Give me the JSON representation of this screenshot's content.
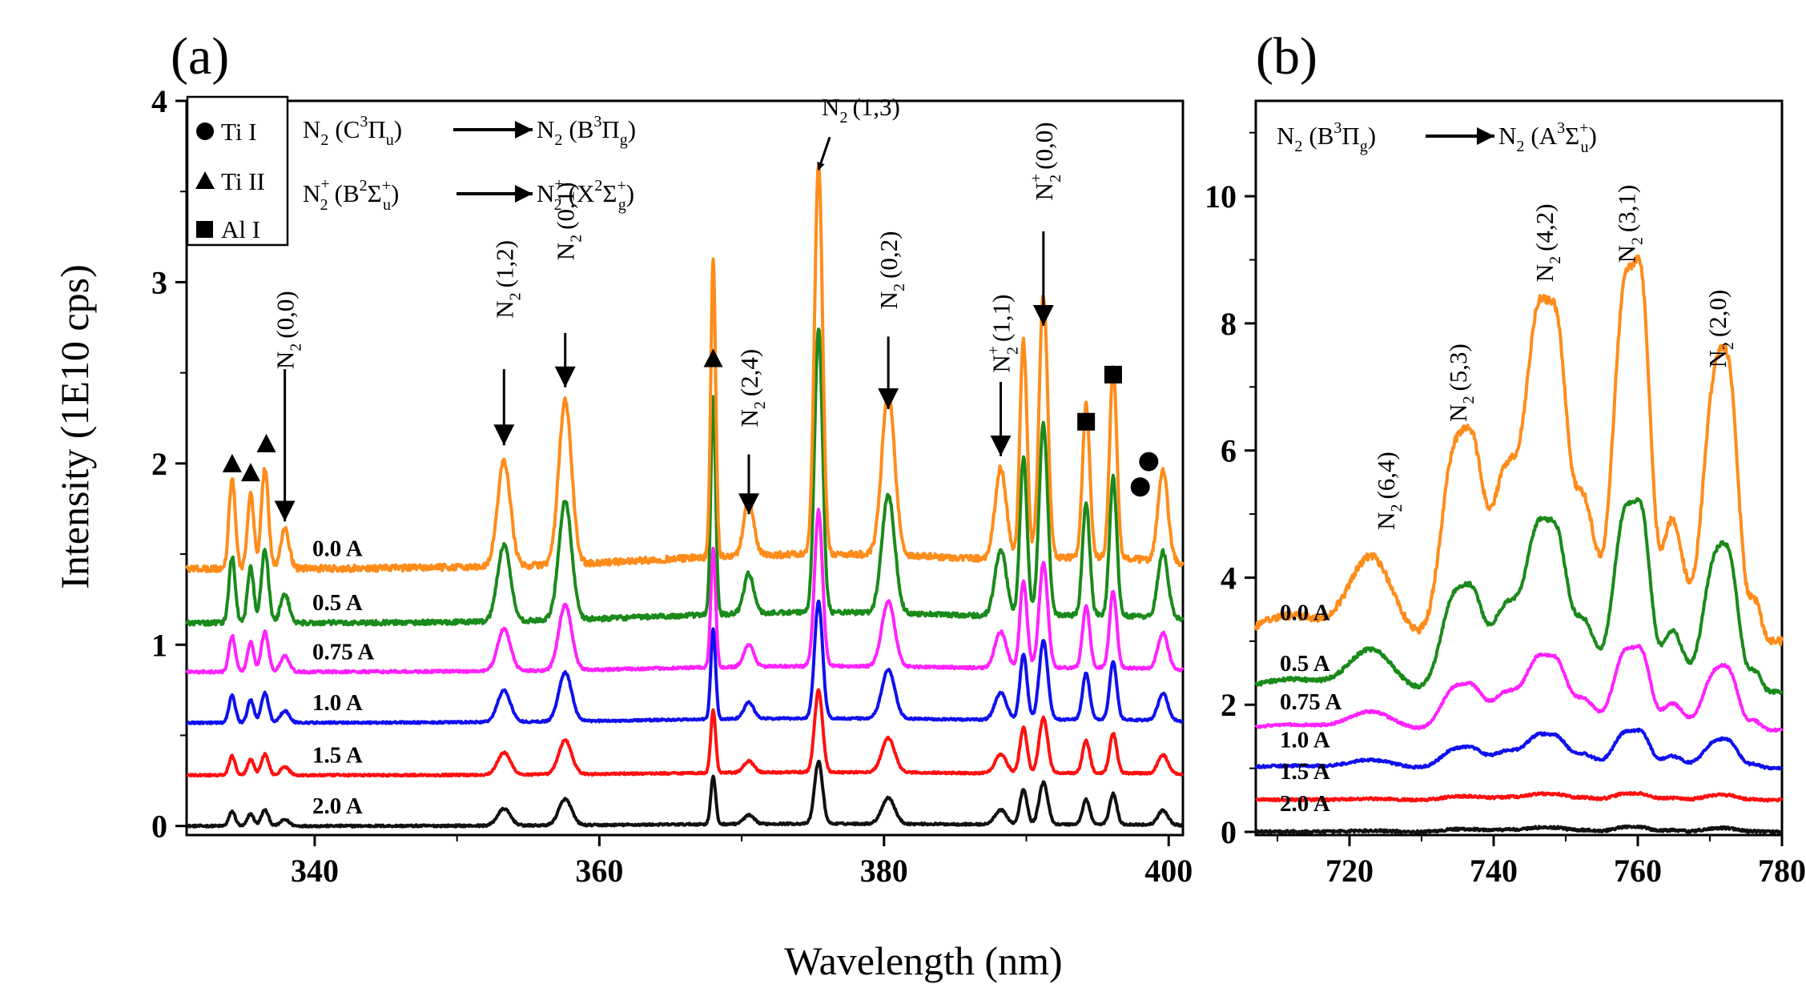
{
  "figure": {
    "panel_a_tag": "(a)",
    "panel_b_tag": "(b)",
    "ylabel": "Intensity (1E10 cps)",
    "xlabel": "Wavelength (nm)"
  },
  "legend": {
    "items": [
      {
        "marker": "circle",
        "label": "Ti I"
      },
      {
        "marker": "triangle",
        "label": "Ti II"
      },
      {
        "marker": "square",
        "label": "Al I"
      }
    ]
  },
  "transitions": {
    "a_line1": {
      "left": "N",
      "left_sub": "2",
      "left_state": "(C",
      "left_sup": "3",
      "left_term": "Π",
      "left_term_sub": "u",
      "left_close": ")",
      "right": "N",
      "right_sub": "2",
      "right_state": "(B",
      "right_sup": "3",
      "right_term": "Π",
      "right_term_sub": "g",
      "right_close": ")"
    },
    "a_line2": {
      "left": "N",
      "left_sup0": "+",
      "left_sub": "2",
      "left_state": "(B",
      "left_sup": "2",
      "left_term": "Σ",
      "left_term_sup": "+",
      "left_term_sub": "u",
      "left_close": ")",
      "right": "N",
      "right_sup0": "+",
      "right_sub": "2",
      "right_state": "(X",
      "right_sup": "2",
      "right_term": "Σ",
      "right_term_sup": "+",
      "right_term_sub": "g",
      "right_close": ")"
    },
    "b_line1": {
      "left": "N",
      "left_sub": "2",
      "left_state": "(B",
      "left_sup": "3",
      "left_term": "Π",
      "left_term_sub": "g",
      "left_close": ")",
      "right": "N",
      "right_sub": "2",
      "right_state": "(A",
      "right_sup": "3",
      "right_term": "Σ",
      "right_term_sup": "+",
      "right_term_sub": "u",
      "right_close": ")"
    }
  },
  "chart_data": [
    {
      "id": "a",
      "type": "line",
      "title": "(a)",
      "xlabel": "Wavelength (nm)",
      "ylabel": "Intensity (1E10 cps)",
      "xlim": [
        331,
        401
      ],
      "ylim": [
        -0.05,
        4
      ],
      "xticks": [
        340,
        360,
        380,
        400
      ],
      "yticks": [
        0,
        1,
        2,
        3,
        4
      ],
      "series": [
        {
          "name": "0.0 A",
          "color": "#ff8c1a",
          "baseline": 1.42,
          "scale": 1.0
        },
        {
          "name": "0.5 A",
          "color": "#1a8a1a",
          "baseline": 1.12,
          "scale": 0.73
        },
        {
          "name": "0.75 A",
          "color": "#ff22ff",
          "baseline": 0.85,
          "scale": 0.4
        },
        {
          "name": "1.0 A",
          "color": "#1010ee",
          "baseline": 0.57,
          "scale": 0.3
        },
        {
          "name": "1.5 A",
          "color": "#ff1010",
          "baseline": 0.28,
          "scale": 0.21
        },
        {
          "name": "2.0 A",
          "color": "#111111",
          "baseline": 0.0,
          "scale": 0.16
        }
      ],
      "peaks": [
        {
          "x": 334.2,
          "h": 0.5,
          "w": 0.22
        },
        {
          "x": 335.5,
          "h": 0.42,
          "w": 0.22
        },
        {
          "x": 336.5,
          "h": 0.55,
          "w": 0.25
        },
        {
          "x": 337.9,
          "h": 0.22,
          "w": 0.3
        },
        {
          "x": 353.3,
          "h": 0.58,
          "w": 0.45
        },
        {
          "x": 357.6,
          "h": 0.9,
          "w": 0.45
        },
        {
          "x": 368.0,
          "h": 1.65,
          "w": 0.17
        },
        {
          "x": 370.5,
          "h": 0.3,
          "w": 0.35
        },
        {
          "x": 375.4,
          "h": 2.15,
          "w": 0.28
        },
        {
          "x": 380.3,
          "h": 0.9,
          "w": 0.45
        },
        {
          "x": 388.2,
          "h": 0.5,
          "w": 0.4
        },
        {
          "x": 389.8,
          "h": 1.2,
          "w": 0.25
        },
        {
          "x": 391.2,
          "h": 1.45,
          "w": 0.3
        },
        {
          "x": 394.2,
          "h": 0.85,
          "w": 0.25
        },
        {
          "x": 396.1,
          "h": 1.05,
          "w": 0.25
        },
        {
          "x": 399.6,
          "h": 0.5,
          "w": 0.35
        }
      ],
      "annotations": [
        {
          "label": "N2(0,0)",
          "main": "N",
          "sub": "2",
          "rest": "(0,0)",
          "x": 337.9,
          "label_y": 2.52,
          "arrow_from": 2.52,
          "arrow_to": 1.68,
          "rotate": true
        },
        {
          "label": "N2(1,2)",
          "main": "N",
          "sub": "2",
          "rest": "(1,2)",
          "x": 353.3,
          "label_y": 2.8,
          "arrow_from": 2.52,
          "arrow_to": 2.1,
          "rotate": true
        },
        {
          "label": "N2(0,1)",
          "main": "N",
          "sub": "2",
          "rest": "(0,1)",
          "x": 357.6,
          "label_y": 3.12,
          "arrow_from": 2.72,
          "arrow_to": 2.42,
          "rotate": true
        },
        {
          "label": "N2(2,4)",
          "main": "N",
          "sub": "2",
          "rest": "(2,4)",
          "x": 370.5,
          "label_y": 2.2,
          "arrow_from": 2.05,
          "arrow_to": 1.72,
          "rotate": true
        },
        {
          "label": "N2(1,3)",
          "main": "N",
          "sub": "2",
          "rest": "(1,3)",
          "x": 375.4,
          "label_y": 3.92,
          "arrow_from": 3.8,
          "arrow_to": 3.62,
          "rotate": false
        },
        {
          "label": "N2(0,2)",
          "main": "N",
          "sub": "2",
          "rest": "(0,2)",
          "x": 380.3,
          "label_y": 2.85,
          "arrow_from": 2.7,
          "arrow_to": 2.3,
          "rotate": true
        },
        {
          "label": "N2+(1,1)",
          "main": "N",
          "sub": "2",
          "sup": "+",
          "rest": "(1,1)",
          "x": 388.2,
          "label_y": 2.5,
          "arrow_from": 2.45,
          "arrow_to": 2.04,
          "rotate": true
        },
        {
          "label": "N2+(0,0)",
          "main": "N",
          "sub": "2",
          "sup": "+",
          "rest": "(0,0)",
          "x": 391.2,
          "label_y": 3.45,
          "arrow_from": 3.28,
          "arrow_to": 2.76,
          "rotate": true
        }
      ],
      "markers": [
        {
          "type": "triangle",
          "x": 334.2,
          "y": 2.0
        },
        {
          "type": "triangle",
          "x": 335.5,
          "y": 1.95
        },
        {
          "type": "triangle",
          "x": 336.6,
          "y": 2.11
        },
        {
          "type": "triangle",
          "x": 368.0,
          "y": 2.58
        },
        {
          "type": "square",
          "x": 394.2,
          "y": 2.23
        },
        {
          "type": "square",
          "x": 396.1,
          "y": 2.49
        },
        {
          "type": "circle",
          "x": 398.0,
          "y": 1.87
        },
        {
          "type": "circle",
          "x": 398.6,
          "y": 2.01
        }
      ]
    },
    {
      "id": "b",
      "type": "line",
      "title": "(b)",
      "xlabel": "Wavelength (nm)",
      "ylabel": "Intensity (1E10 cps)",
      "xlim": [
        707,
        780
      ],
      "ylim": [
        -0.05,
        11.5
      ],
      "xticks": [
        720,
        740,
        760,
        780
      ],
      "yticks": [
        0,
        2,
        4,
        6,
        8,
        10
      ],
      "series": [
        {
          "name": "0.0 A",
          "color": "#ff8c1a",
          "baseline": 3.0,
          "scale": 1.0
        },
        {
          "name": "0.5 A",
          "color": "#1a8a1a",
          "baseline": 2.2,
          "scale": 0.505
        },
        {
          "name": "0.75 A",
          "color": "#ff22ff",
          "baseline": 1.6,
          "scale": 0.22
        },
        {
          "name": "1.0 A",
          "color": "#1010ee",
          "baseline": 1.0,
          "scale": 0.1
        },
        {
          "name": "1.5 A",
          "color": "#ff1010",
          "baseline": 0.5,
          "scale": 0.018
        },
        {
          "name": "2.0 A",
          "color": "#111111",
          "baseline": 0.0,
          "scale": 0.013
        }
      ],
      "peaks": [
        {
          "x": 712.0,
          "h": 0.4,
          "w": 5.0
        },
        {
          "x": 723.0,
          "h": 1.3,
          "w": 3.0
        },
        {
          "x": 734.5,
          "h": 2.9,
          "w": 1.8
        },
        {
          "x": 737.3,
          "h": 2.0,
          "w": 1.3
        },
        {
          "x": 741.8,
          "h": 2.7,
          "w": 2.2
        },
        {
          "x": 746.2,
          "h": 4.6,
          "w": 1.6
        },
        {
          "x": 749.0,
          "h": 3.8,
          "w": 1.3
        },
        {
          "x": 752.5,
          "h": 2.2,
          "w": 1.6
        },
        {
          "x": 758.2,
          "h": 5.5,
          "w": 1.6
        },
        {
          "x": 760.8,
          "h": 4.0,
          "w": 1.1
        },
        {
          "x": 764.8,
          "h": 1.9,
          "w": 1.5
        },
        {
          "x": 770.6,
          "h": 3.9,
          "w": 1.6
        },
        {
          "x": 773.0,
          "h": 2.8,
          "w": 1.2
        },
        {
          "x": 776.3,
          "h": 0.6,
          "w": 0.8
        }
      ],
      "annotations": [
        {
          "label": "N2(6,4)",
          "main": "N",
          "sub": "2",
          "rest": "(6,4)",
          "x": 725.0,
          "label_y": 4.75,
          "rotate": true
        },
        {
          "label": "N2(5,3)",
          "main": "N",
          "sub": "2",
          "rest": "(5,3)",
          "x": 735.0,
          "label_y": 6.45,
          "rotate": true
        },
        {
          "label": "N2(4,2)",
          "main": "N",
          "sub": "2",
          "rest": "(4,2)",
          "x": 747.0,
          "label_y": 8.65,
          "rotate": true
        },
        {
          "label": "N2(3,1)",
          "main": "N",
          "sub": "2",
          "rest": "(3,1)",
          "x": 758.4,
          "label_y": 8.95,
          "rotate": true
        },
        {
          "label": "N2(2,0)",
          "main": "N",
          "sub": "2",
          "rest": "(2,0)",
          "x": 771.0,
          "label_y": 7.3,
          "rotate": true
        }
      ]
    }
  ]
}
